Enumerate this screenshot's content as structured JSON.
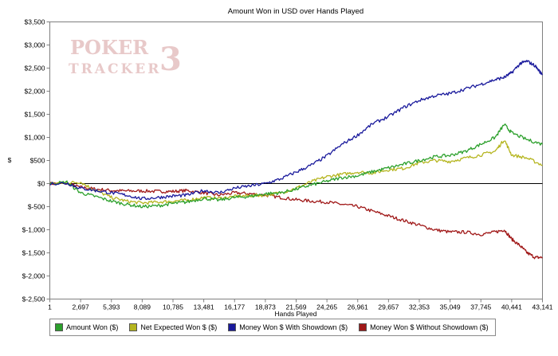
{
  "chart_data": {
    "type": "line",
    "title": "Amount Won in USD over Hands Played",
    "xlabel": "Hands Played",
    "ylabel": "$",
    "x_ticks": [
      "1",
      "2,697",
      "5,393",
      "8,089",
      "10,785",
      "13,481",
      "16,177",
      "18,873",
      "21,569",
      "24,265",
      "26,961",
      "29,657",
      "32,353",
      "35,049",
      "37,745",
      "40,441",
      "43,141"
    ],
    "y_ticks": [
      "$3,500",
      "$3,000",
      "$2,500",
      "$2,000",
      "$1,500",
      "$1,000",
      "$500",
      "$0",
      "$-500",
      "$-1,000",
      "$-1,500",
      "$-2,000",
      "$-2,500"
    ],
    "xlim": [
      1,
      43141
    ],
    "ylim": [
      -2500,
      3500
    ],
    "grid": false,
    "legend_placement": "bottom",
    "watermark": {
      "line1": "POKER",
      "line2": "TRACKER",
      "numeral": "3"
    },
    "series": [
      {
        "name": "Amount Won ($)",
        "color": "#2ca02c",
        "x": [
          1,
          1500,
          2697,
          4000,
          5393,
          6700,
          8089,
          9500,
          10785,
          12000,
          13481,
          14800,
          16177,
          17500,
          18873,
          20200,
          21569,
          22900,
          24265,
          25600,
          26961,
          28300,
          29657,
          31000,
          32353,
          33700,
          35049,
          36400,
          37745,
          39000,
          39800,
          40441,
          41800,
          43141
        ],
        "y": [
          0,
          30,
          -200,
          -280,
          -380,
          -450,
          -500,
          -480,
          -430,
          -400,
          -320,
          -360,
          -300,
          -280,
          -220,
          -200,
          -120,
          -30,
          50,
          130,
          170,
          260,
          340,
          420,
          500,
          580,
          610,
          700,
          850,
          1000,
          1280,
          1100,
          950,
          850
        ]
      },
      {
        "name": "Net Expected Won $ ($)",
        "color": "#b5b51f",
        "x": [
          1,
          1500,
          2697,
          4000,
          5393,
          6700,
          8089,
          9500,
          10785,
          12000,
          13481,
          14800,
          16177,
          17500,
          18873,
          20200,
          21569,
          22900,
          24265,
          25600,
          26961,
          28300,
          29657,
          31000,
          32353,
          33700,
          35049,
          36400,
          37745,
          39000,
          39800,
          40441,
          41800,
          43141
        ],
        "y": [
          0,
          20,
          30,
          -150,
          -300,
          -380,
          -420,
          -400,
          -380,
          -360,
          -300,
          -320,
          -280,
          -260,
          -250,
          -200,
          -100,
          40,
          150,
          200,
          250,
          230,
          300,
          330,
          450,
          500,
          480,
          550,
          620,
          700,
          950,
          620,
          550,
          400
        ]
      },
      {
        "name": "Money Won $ With Showdown ($)",
        "color": "#1a1a9c",
        "x": [
          1,
          1500,
          2697,
          4000,
          5393,
          6700,
          8089,
          9500,
          10785,
          12000,
          13481,
          14800,
          16177,
          17500,
          18873,
          20200,
          21569,
          22900,
          24265,
          25600,
          26961,
          28300,
          29657,
          31000,
          32353,
          33700,
          35049,
          36400,
          37745,
          39000,
          39800,
          40441,
          41200,
          41800,
          42500,
          43141
        ],
        "y": [
          0,
          10,
          -100,
          -150,
          -200,
          -250,
          -330,
          -300,
          -270,
          -250,
          -150,
          -200,
          -100,
          -50,
          0,
          100,
          250,
          400,
          600,
          850,
          1050,
          1300,
          1450,
          1650,
          1800,
          1900,
          1950,
          2050,
          2150,
          2250,
          2300,
          2400,
          2600,
          2650,
          2550,
          2350
        ]
      },
      {
        "name": "Money Won $ Without Showdown ($)",
        "color": "#a01818",
        "x": [
          1,
          1500,
          2697,
          4000,
          5393,
          6700,
          8089,
          9500,
          10785,
          12000,
          13481,
          14800,
          16177,
          17500,
          18873,
          20200,
          21569,
          22900,
          24265,
          25600,
          26961,
          28300,
          29657,
          31000,
          32353,
          33700,
          35049,
          36400,
          37745,
          39000,
          39800,
          40441,
          41200,
          41800,
          42500,
          43141
        ],
        "y": [
          0,
          0,
          -80,
          -120,
          -150,
          -160,
          -160,
          -170,
          -170,
          -150,
          -200,
          -250,
          -200,
          -220,
          -250,
          -300,
          -350,
          -380,
          -400,
          -450,
          -500,
          -600,
          -700,
          -800,
          -900,
          -1000,
          -1050,
          -1050,
          -1100,
          -1050,
          -1000,
          -1200,
          -1350,
          -1500,
          -1600,
          -1600
        ]
      }
    ]
  }
}
